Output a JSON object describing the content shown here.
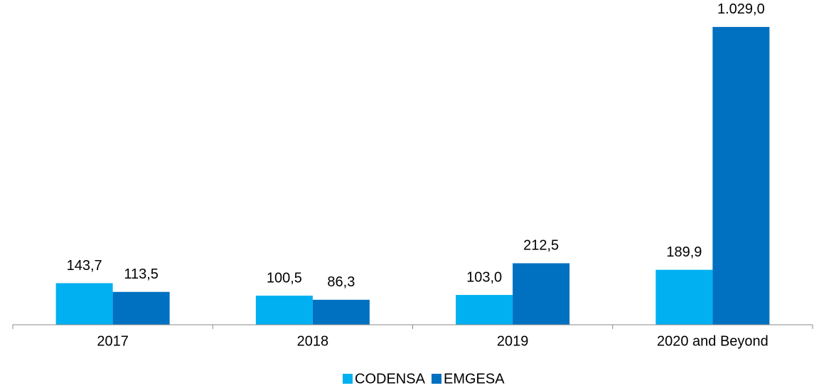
{
  "chart_data": {
    "type": "bar",
    "categories": [
      "2017",
      "2018",
      "2019",
      "2020 and Beyond"
    ],
    "series": [
      {
        "name": "CODENSA",
        "color": "#00b0f0",
        "values": [
          143.7,
          100.5,
          103.0,
          189.9
        ],
        "value_labels": [
          "143,7",
          "100,5",
          "103,0",
          "189,9"
        ]
      },
      {
        "name": "EMGESA",
        "color": "#0070c0",
        "values": [
          113.5,
          86.3,
          212.5,
          1029.0
        ],
        "value_labels": [
          "113,5",
          "86,3",
          "212,5",
          "1.029,0"
        ]
      }
    ],
    "ylim": [
      0,
      1100
    ]
  }
}
